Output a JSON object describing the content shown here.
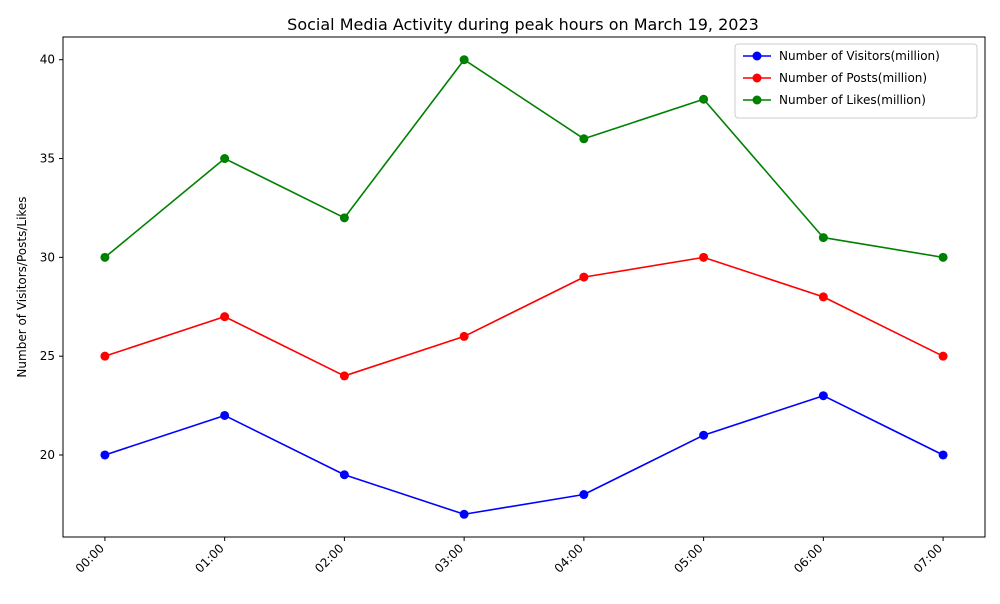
{
  "chart_data": {
    "type": "line",
    "title": "Social Media Activity during peak hours on March 19, 2023",
    "xlabel": "",
    "ylabel": "Number of Visitors/Posts/Likes",
    "categories": [
      "00:00",
      "01:00",
      "02:00",
      "03:00",
      "04:00",
      "05:00",
      "06:00",
      "07:00"
    ],
    "ylim": [
      15.85,
      41.15
    ],
    "yticks": [
      20,
      25,
      30,
      35,
      40
    ],
    "grid": false,
    "legend_position": "top-right",
    "series": [
      {
        "name": "Number of Visitors(million)",
        "color": "#0000ff",
        "values": [
          20,
          22,
          19,
          17,
          18,
          21,
          23,
          20
        ]
      },
      {
        "name": "Number of Posts(million)",
        "color": "#ff0000",
        "values": [
          25,
          27,
          24,
          26,
          29,
          30,
          28,
          25
        ]
      },
      {
        "name": "Number of Likes(million)",
        "color": "#008000",
        "values": [
          30,
          35,
          32,
          40,
          36,
          38,
          31,
          30
        ]
      }
    ]
  }
}
